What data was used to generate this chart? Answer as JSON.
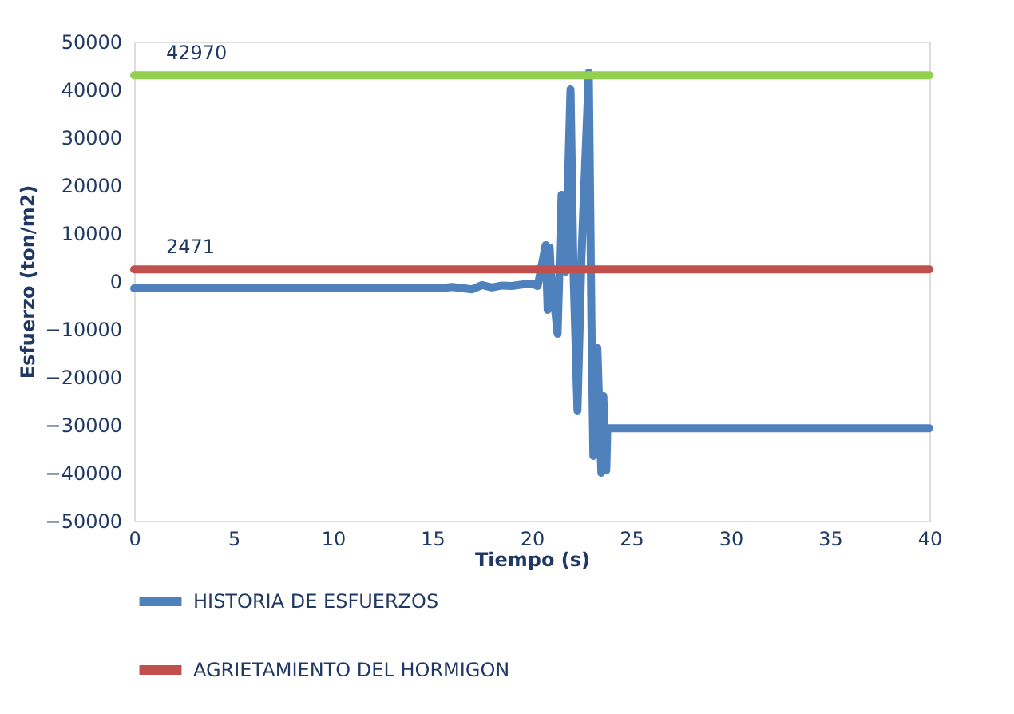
{
  "chart_data": {
    "type": "line",
    "xlabel": "Tiempo (s)",
    "ylabel": "Esfuerzo (ton/m2)",
    "xlim": [
      0,
      40
    ],
    "xticks": [
      0,
      5,
      10,
      15,
      20,
      25,
      30,
      35,
      40
    ],
    "ylim": [
      -50000,
      50000
    ],
    "yticks": [
      -50000,
      -40000,
      -30000,
      -20000,
      -10000,
      0,
      10000,
      20000,
      30000,
      40000,
      50000
    ],
    "grid": false,
    "legend": "bottom left",
    "marker": "none",
    "line_style": "solid",
    "series": [
      {
        "name": "HISTORIA DE ESFUERZOS",
        "color": "#4f81bd",
        "x": [
          0,
          5,
          10,
          14,
          15.5,
          16,
          17,
          17.5,
          18,
          18.5,
          19,
          19.5,
          20,
          20.3,
          20.7,
          20.8,
          20.9,
          21.0,
          21.1,
          21.3,
          21.5,
          21.7,
          21.95,
          22.1,
          22.3,
          22.5,
          22.87,
          23.0,
          23.1,
          23.3,
          23.5,
          23.6,
          23.75,
          23.8,
          40
        ],
        "values": [
          -1500,
          -1500,
          -1500,
          -1500,
          -1400,
          -1200,
          -1700,
          -800,
          -1300,
          -900,
          -1000,
          -700,
          -500,
          -1000,
          7500,
          -6000,
          7000,
          -1500,
          -3000,
          -11000,
          18000,
          2000,
          40000,
          2000,
          -27000,
          5000,
          43500,
          -8000,
          -36500,
          -14000,
          -40000,
          -24000,
          -39500,
          -30700,
          -30700
        ]
      },
      {
        "name": "AGRIETAMIENTO DEL HORMIGON",
        "color": "#c0504d",
        "x": [
          0,
          40
        ],
        "values": [
          2471,
          2471
        ]
      },
      {
        "color": "#92d050",
        "x": [
          0,
          40
        ],
        "values": [
          42970,
          42970
        ]
      }
    ],
    "annotations": [
      {
        "text": "42970",
        "x": 0,
        "y": 42970
      },
      {
        "text": "2471",
        "x": 0,
        "y": 2471
      }
    ]
  }
}
